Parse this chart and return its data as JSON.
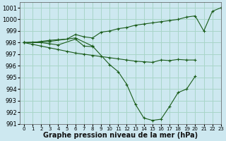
{
  "title": "Graphe pression niveau de la mer (hPa)",
  "bg_color": "#cde8f0",
  "grid_color": "#a8d5c8",
  "line_color": "#1a5c1a",
  "marker_color": "#1a5c1a",
  "xlim": [
    -0.5,
    23
  ],
  "ylim": [
    991,
    1001.5
  ],
  "xticks": [
    0,
    1,
    2,
    3,
    4,
    5,
    6,
    7,
    8,
    9,
    10,
    11,
    12,
    13,
    14,
    15,
    16,
    17,
    18,
    19,
    20,
    21,
    22,
    23
  ],
  "yticks": [
    991,
    992,
    993,
    994,
    995,
    996,
    997,
    998,
    999,
    1000,
    1001
  ],
  "series_A_x": [
    0,
    1,
    2,
    3,
    4,
    5,
    6,
    7,
    8,
    9,
    10,
    11,
    12,
    13,
    14,
    15,
    16,
    17,
    18,
    19,
    20,
    21,
    22,
    23
  ],
  "series_A_y": [
    998.0,
    998.0,
    998.1,
    998.2,
    998.25,
    998.3,
    998.7,
    998.5,
    998.4,
    998.9,
    999.0,
    999.2,
    999.3,
    999.5,
    999.6,
    999.7,
    999.8,
    999.9,
    1000.0,
    1000.2,
    1000.3,
    999.0,
    1000.7,
    1001.0
  ],
  "series_B_x": [
    0,
    1,
    2,
    3,
    4,
    5,
    6,
    7,
    8,
    9,
    10,
    11,
    12,
    13,
    14,
    15,
    16,
    17,
    18,
    19,
    20
  ],
  "series_B_y": [
    998.0,
    997.85,
    997.7,
    997.55,
    997.4,
    997.25,
    997.1,
    997.0,
    996.9,
    996.8,
    996.7,
    996.6,
    996.5,
    996.4,
    996.35,
    996.3,
    996.5,
    996.45,
    996.55,
    996.5,
    996.5
  ],
  "series_C_x": [
    0,
    2,
    3,
    4,
    6,
    7,
    8
  ],
  "series_C_y": [
    998.0,
    998.0,
    997.9,
    997.8,
    998.3,
    997.7,
    997.65
  ],
  "series_D_x": [
    0,
    3,
    6,
    8,
    10,
    11,
    12,
    13,
    14,
    15,
    16,
    17,
    18,
    19,
    20
  ],
  "series_D_y": [
    998.0,
    998.1,
    998.4,
    997.7,
    996.1,
    995.5,
    994.4,
    992.7,
    991.5,
    991.3,
    991.4,
    992.5,
    993.7,
    994.0,
    995.1
  ],
  "fontsize_label": 7,
  "fontsize_tick": 6
}
